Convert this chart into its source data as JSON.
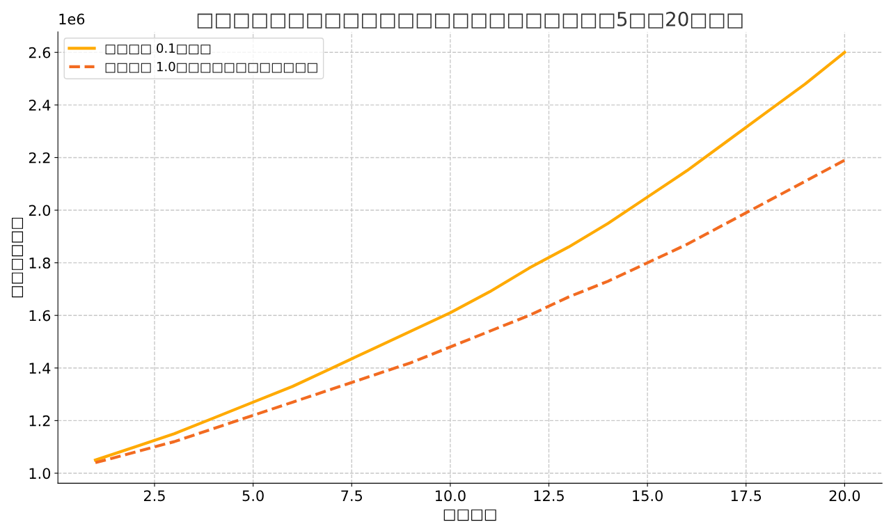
{
  "chart_data": {
    "type": "line",
    "title": "□□□□□□□□□□□□□□□□□□□□□□□5□□20□□□",
    "xlabel": "□□□□",
    "ylabel": "□□□□□□",
    "x": [
      1,
      2,
      3,
      4,
      5,
      6,
      7,
      8,
      9,
      10,
      11,
      12,
      13,
      14,
      15,
      16,
      17,
      18,
      19,
      20
    ],
    "series": [
      {
        "name": "□□□□ 0.1□□□",
        "color": "#ffaa00",
        "line_style": "solid",
        "values": [
          1.05,
          1.1,
          1.15,
          1.21,
          1.27,
          1.33,
          1.4,
          1.47,
          1.54,
          1.61,
          1.69,
          1.78,
          1.86,
          1.95,
          2.05,
          2.15,
          2.26,
          2.37,
          2.48,
          2.6
        ]
      },
      {
        "name": "□□□□ 1.0□□□□□□□□□□□□",
        "color": "#f26b21",
        "line_style": "dashed",
        "values": [
          1.04,
          1.08,
          1.12,
          1.17,
          1.22,
          1.27,
          1.32,
          1.37,
          1.42,
          1.48,
          1.54,
          1.6,
          1.67,
          1.73,
          1.8,
          1.87,
          1.95,
          2.03,
          2.11,
          2.19
        ]
      }
    ],
    "xlim": [
      0.05,
      20.95
    ],
    "xticks": [
      {
        "value": 2.5,
        "label": "2.5"
      },
      {
        "value": 5,
        "label": "5.0"
      },
      {
        "value": 7.5,
        "label": "7.5"
      },
      {
        "value": 10,
        "label": "10.0"
      },
      {
        "value": 12.5,
        "label": "12.5"
      },
      {
        "value": 15,
        "label": "15.0"
      },
      {
        "value": 17.5,
        "label": "17.5"
      },
      {
        "value": 20,
        "label": "20.0"
      }
    ],
    "ylim": [
      0.962,
      2.678
    ],
    "yticks": [
      {
        "value": 1,
        "label": "1.0"
      },
      {
        "value": 1.2,
        "label": "1.2"
      },
      {
        "value": 1.4,
        "label": "1.4"
      },
      {
        "value": 1.6,
        "label": "1.6"
      },
      {
        "value": 1.8,
        "label": "1.8"
      },
      {
        "value": 2,
        "label": "2.0"
      },
      {
        "value": 2.2,
        "label": "2.2"
      },
      {
        "value": 2.4,
        "label": "2.4"
      },
      {
        "value": 2.6,
        "label": "2.6"
      }
    ],
    "annotations": [
      "1e6"
    ],
    "grid": true,
    "legend": "top left",
    "marker": "none"
  }
}
